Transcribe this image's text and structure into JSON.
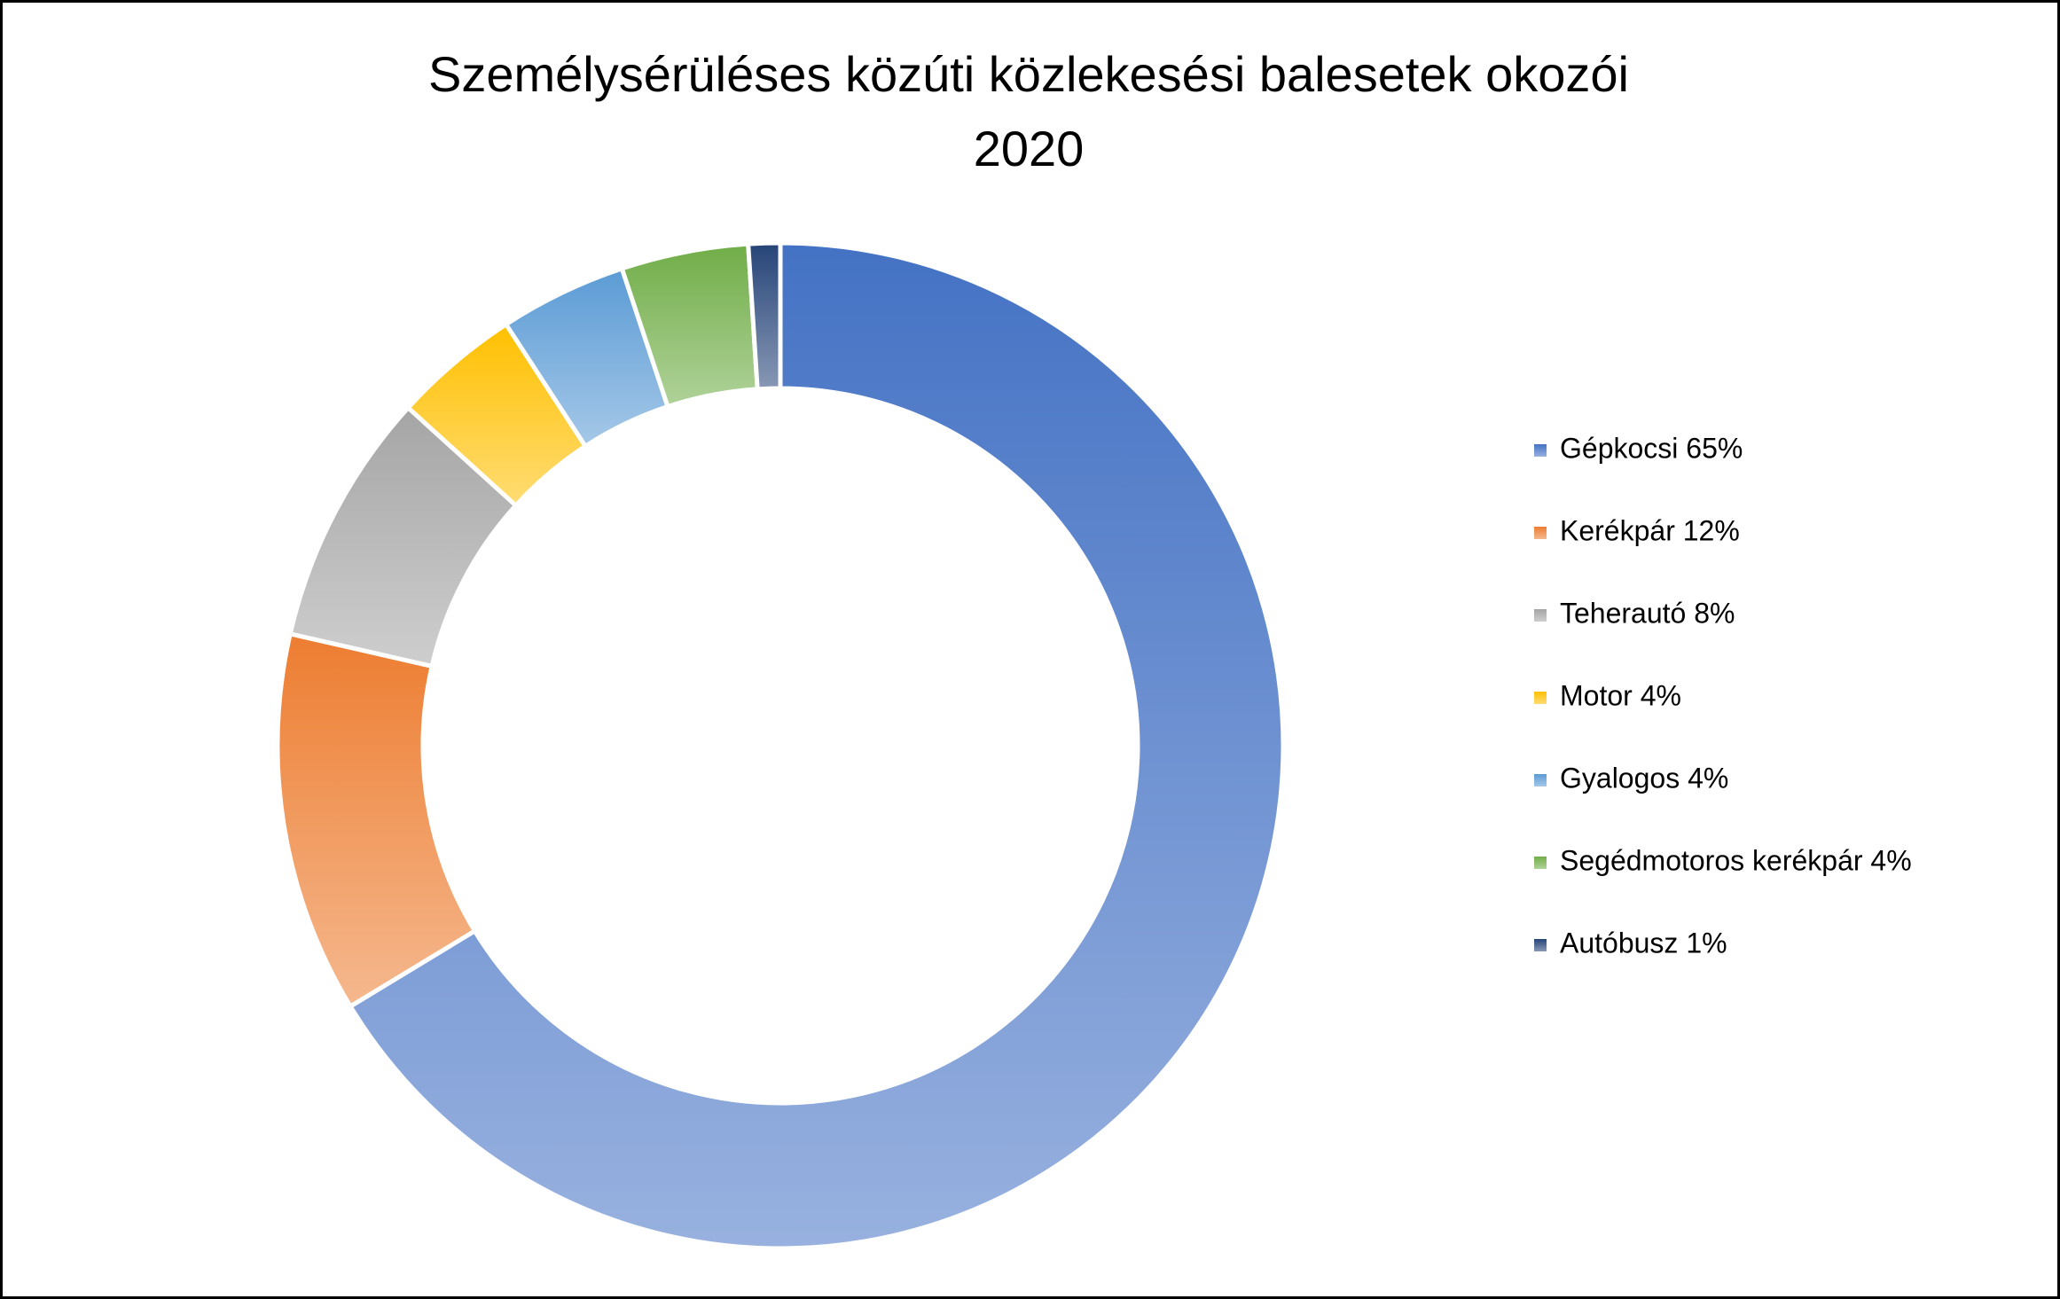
{
  "chart_data": {
    "type": "donut",
    "title": [
      "Személysérüléses közúti közlekesési balesetek okozói",
      "2020"
    ],
    "categories": [
      "Gépkocsi 65%",
      "Kerékpár 12%",
      "Teherautó 8%",
      "Motor 4%",
      "Gyalogos 4%",
      "Segédmotoros kerékpár 4%",
      "Autóbusz 1%"
    ],
    "values": [
      65,
      12,
      8,
      4,
      4,
      4,
      1
    ],
    "colors": [
      "#4472c4",
      "#ed7d31",
      "#a5a5a5",
      "#ffc000",
      "#5b9bd5",
      "#70ad47",
      "#264478"
    ],
    "legend": "right"
  }
}
